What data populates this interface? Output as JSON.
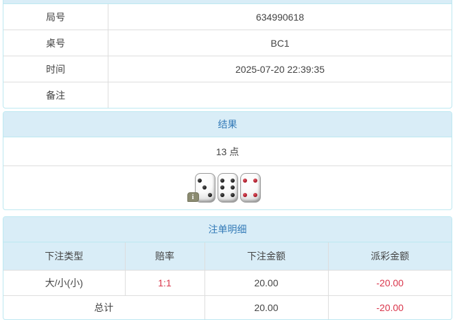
{
  "info_table": {
    "rows": [
      {
        "label": "局号",
        "value": "634990618"
      },
      {
        "label": "桌号",
        "value": "BC1"
      },
      {
        "label": "时间",
        "value": "2025-07-20 22:39:35"
      },
      {
        "label": "备注",
        "value": ""
      }
    ]
  },
  "result_panel": {
    "title": "结果",
    "points": "13 点",
    "dice": [
      {
        "value": 3,
        "pip_color": "black"
      },
      {
        "value": 6,
        "pip_color": "black"
      },
      {
        "value": 4,
        "pip_color": "red"
      }
    ],
    "info_icon": "i"
  },
  "bets_panel": {
    "title": "注单明细",
    "columns": [
      "下注类型",
      "赔率",
      "下注金额",
      "派彩金额"
    ],
    "rows": [
      {
        "type": "大/小(小)",
        "odds": "1:1",
        "amount": "20.00",
        "payout": "-20.00"
      }
    ],
    "total": {
      "label": "总计",
      "amount": "20.00",
      "payout": "-20.00"
    }
  },
  "colors": {
    "accent_blue": "#337ab7",
    "panel_border": "#bce8f1",
    "header_bg": "#d9edf7",
    "row_border": "#dddddd",
    "body_text": "#434343",
    "negative_red": "#d9344a",
    "dice_pip_black": "#121212",
    "dice_pip_red": "#9e0f1f",
    "info_badge_bg": "#8b8b71"
  }
}
